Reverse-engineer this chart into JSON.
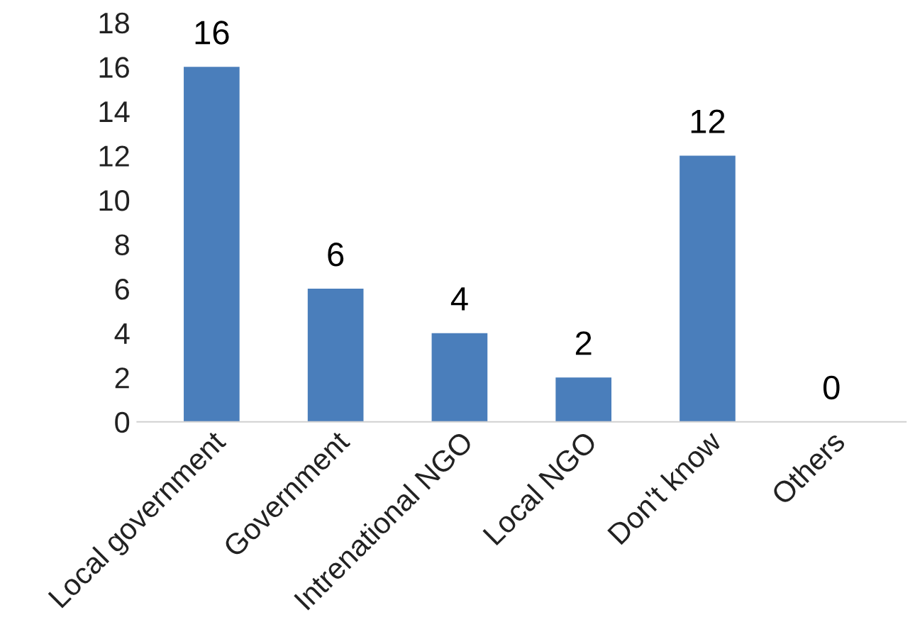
{
  "chart_data": {
    "type": "bar",
    "categories": [
      "Local government",
      "Government",
      "Intrenational NGO",
      "Local NGO",
      "Don't know",
      "Others"
    ],
    "values": [
      16,
      6,
      4,
      2,
      12,
      0
    ],
    "color": "#4a7ebb",
    "ylim": [
      0,
      18
    ],
    "yticks": [
      0,
      2,
      4,
      6,
      8,
      10,
      12,
      14,
      16,
      18
    ],
    "grid": false,
    "data_labels": true
  }
}
